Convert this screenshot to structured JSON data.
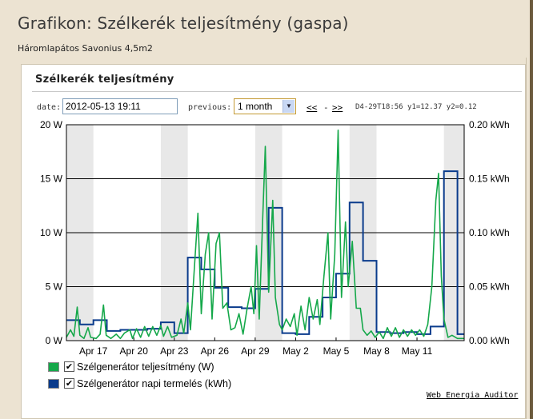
{
  "page": {
    "title": "Grafikon: Szélkerék teljesítmény (gaspa)",
    "subtitle": "Háromlapátos Savonius 4,5m2"
  },
  "widget": {
    "title": "Szélkerék teljesítmény",
    "date_label": "date:",
    "date_value": "2012-05-13 19:11",
    "previous_label": "previous:",
    "previous_value": "1 month",
    "nav_back": "<<",
    "nav_sep": "-",
    "nav_forward": ">>",
    "status": "D4-29T18:56 y1=12.37 y2=0.12",
    "footer_link": "Web Energia Auditor"
  },
  "colors": {
    "power_series": "#15a84a",
    "daily_series": "#0a3b8c",
    "weekend_band": "#e8e8e8",
    "grid": "#000000"
  },
  "legend": [
    {
      "label": "Szélgenerátor teljesítmény (W)",
      "checked": true,
      "color": "#15a84a"
    },
    {
      "label": "Szélgenerátor napi termelés (kWh)",
      "checked": true,
      "color": "#0a3b8c"
    }
  ],
  "chart_data": {
    "type": "line",
    "x_axis": {
      "min_day": 0,
      "max_day": 29.5,
      "ticks": [
        {
          "day": 2,
          "label": "Apr 17"
        },
        {
          "day": 5,
          "label": "Apr 20"
        },
        {
          "day": 8,
          "label": "Apr 23"
        },
        {
          "day": 11,
          "label": "Apr 26"
        },
        {
          "day": 14,
          "label": "Apr 29"
        },
        {
          "day": 17,
          "label": "May 2"
        },
        {
          "day": 20,
          "label": "May 5"
        },
        {
          "day": 23,
          "label": "May 8"
        },
        {
          "day": 26,
          "label": "May 11"
        }
      ],
      "weekend_bands": [
        [
          0,
          2
        ],
        [
          7,
          9
        ],
        [
          14,
          16
        ],
        [
          21,
          23
        ],
        [
          28,
          29.5
        ]
      ]
    },
    "y_left": {
      "min": 0,
      "max": 20,
      "unit": "W",
      "ticks": [
        "0 W",
        "5 W",
        "10 W",
        "15 W",
        "20 W"
      ],
      "tick_values": [
        0,
        5,
        10,
        15,
        20
      ]
    },
    "y_right": {
      "min": 0,
      "max": 0.2,
      "unit": "kWh",
      "ticks": [
        "0.00 kWh",
        "0.05 kWh",
        "0.10 kWh",
        "0.15 kWh",
        "0.20 kWh"
      ],
      "tick_values": [
        0,
        0.05,
        0.1,
        0.15,
        0.2
      ]
    },
    "grid": true,
    "series": [
      {
        "name": "Szélgenerátor teljesítmény (W)",
        "axis": "left",
        "points": [
          [
            0,
            0.3
          ],
          [
            0.3,
            1.0
          ],
          [
            0.55,
            0.4
          ],
          [
            0.8,
            3.1
          ],
          [
            1.0,
            0.5
          ],
          [
            1.3,
            0.2
          ],
          [
            1.6,
            1.2
          ],
          [
            1.8,
            0.3
          ],
          [
            2.2,
            0.2
          ],
          [
            2.5,
            0.6
          ],
          [
            2.75,
            3.3
          ],
          [
            2.95,
            0.5
          ],
          [
            3.3,
            0.2
          ],
          [
            3.7,
            0.6
          ],
          [
            4.0,
            0.2
          ],
          [
            4.3,
            0.7
          ],
          [
            4.7,
            1.0
          ],
          [
            4.9,
            0.2
          ],
          [
            5.2,
            1.1
          ],
          [
            5.5,
            0.3
          ],
          [
            5.8,
            1.3
          ],
          [
            6.1,
            0.4
          ],
          [
            6.4,
            1.3
          ],
          [
            6.7,
            0.5
          ],
          [
            7.0,
            1.4
          ],
          [
            7.2,
            0.4
          ],
          [
            7.5,
            1.3
          ],
          [
            7.8,
            0.3
          ],
          [
            8.2,
            0.5
          ],
          [
            8.5,
            2.0
          ],
          [
            8.7,
            0.7
          ],
          [
            9.0,
            3.5
          ],
          [
            9.2,
            1.0
          ],
          [
            9.5,
            7.0
          ],
          [
            9.75,
            11.8
          ],
          [
            10.0,
            2.5
          ],
          [
            10.3,
            8.0
          ],
          [
            10.55,
            10.0
          ],
          [
            10.8,
            2.0
          ],
          [
            11.1,
            9.0
          ],
          [
            11.35,
            10.0
          ],
          [
            11.6,
            3.0
          ],
          [
            11.9,
            3.5
          ],
          [
            12.2,
            1.0
          ],
          [
            12.5,
            1.2
          ],
          [
            12.8,
            2.5
          ],
          [
            13.1,
            0.6
          ],
          [
            13.4,
            3.0
          ],
          [
            13.7,
            5.0
          ],
          [
            13.9,
            2.5
          ],
          [
            14.1,
            8.8
          ],
          [
            14.3,
            2.0
          ],
          [
            14.55,
            11.0
          ],
          [
            14.75,
            18.0
          ],
          [
            15.0,
            4.5
          ],
          [
            15.3,
            13.0
          ],
          [
            15.5,
            4.0
          ],
          [
            15.8,
            1.5
          ],
          [
            16.0,
            1.0
          ],
          [
            16.3,
            2.0
          ],
          [
            16.6,
            1.3
          ],
          [
            16.9,
            2.5
          ],
          [
            17.1,
            0.5
          ],
          [
            17.4,
            3.2
          ],
          [
            17.7,
            1.0
          ],
          [
            18.0,
            4.0
          ],
          [
            18.3,
            2.0
          ],
          [
            18.6,
            3.8
          ],
          [
            18.8,
            1.5
          ],
          [
            19.1,
            6.0
          ],
          [
            19.4,
            10.0
          ],
          [
            19.6,
            2.0
          ],
          [
            19.9,
            8.0
          ],
          [
            20.15,
            19.5
          ],
          [
            20.4,
            4.0
          ],
          [
            20.7,
            11.0
          ],
          [
            20.9,
            5.0
          ],
          [
            21.2,
            9.2
          ],
          [
            21.5,
            3.0
          ],
          [
            21.8,
            3.0
          ],
          [
            22.0,
            1.0
          ],
          [
            22.3,
            0.5
          ],
          [
            22.6,
            0.9
          ],
          [
            22.9,
            0.3
          ],
          [
            23.2,
            0.8
          ],
          [
            23.5,
            0.2
          ],
          [
            23.8,
            1.2
          ],
          [
            24.1,
            0.4
          ],
          [
            24.4,
            1.2
          ],
          [
            24.7,
            0.3
          ],
          [
            25.0,
            1.0
          ],
          [
            25.3,
            0.4
          ],
          [
            25.6,
            1.0
          ],
          [
            25.9,
            0.5
          ],
          [
            26.2,
            1.0
          ],
          [
            26.5,
            0.4
          ],
          [
            26.8,
            1.5
          ],
          [
            27.1,
            5.0
          ],
          [
            27.4,
            13.0
          ],
          [
            27.6,
            15.5
          ],
          [
            27.8,
            6.0
          ],
          [
            28.0,
            2.0
          ],
          [
            28.3,
            0.3
          ],
          [
            28.6,
            0.5
          ],
          [
            29.0,
            0.2
          ],
          [
            29.5,
            0.2
          ]
        ]
      },
      {
        "name": "Szélgenerátor napi termelés (kWh)",
        "axis": "right",
        "steps": [
          [
            0,
            0.019
          ],
          [
            1,
            0.015
          ],
          [
            2,
            0.019
          ],
          [
            3,
            0.009
          ],
          [
            4,
            0.01
          ],
          [
            5,
            0.01
          ],
          [
            6,
            0.011
          ],
          [
            7,
            0.017
          ],
          [
            8,
            0.007
          ],
          [
            9,
            0.077
          ],
          [
            10,
            0.066
          ],
          [
            11,
            0.049
          ],
          [
            12,
            0.031
          ],
          [
            13,
            0.03
          ],
          [
            14,
            0.048
          ],
          [
            15,
            0.123
          ],
          [
            16,
            0.007
          ],
          [
            17,
            0.006
          ],
          [
            18,
            0.022
          ],
          [
            19,
            0.04
          ],
          [
            20,
            0.062
          ],
          [
            21,
            0.128
          ],
          [
            22,
            0.074
          ],
          [
            23,
            0.008
          ],
          [
            24,
            0.007
          ],
          [
            25,
            0.008
          ],
          [
            26,
            0.006
          ],
          [
            27,
            0.013
          ],
          [
            28,
            0.157
          ],
          [
            29,
            0.006
          ]
        ],
        "end_day": 29.5
      }
    ]
  }
}
